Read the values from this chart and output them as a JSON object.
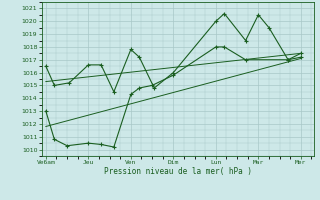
{
  "xlabel": "Pression niveau de la mer( hPa )",
  "ylim": [
    1009.5,
    1021.5
  ],
  "yticks": [
    1010,
    1011,
    1012,
    1013,
    1014,
    1015,
    1016,
    1017,
    1018,
    1019,
    1020,
    1021
  ],
  "xtick_labels": [
    "Ve6am",
    "Jeu",
    "Ven",
    "Dim",
    "Lun",
    "Mar",
    "Mer"
  ],
  "xtick_positions": [
    0,
    1,
    2,
    3,
    4,
    5,
    6
  ],
  "xlim": [
    -0.1,
    6.3
  ],
  "bg_color": "#cde8e8",
  "grid_color": "#a8c8c8",
  "line_color": "#1a5e20",
  "series1_x": [
    0,
    0.2,
    0.55,
    1.0,
    1.3,
    1.6,
    2.0,
    2.2,
    2.55,
    3.0,
    4.0,
    4.2,
    4.7,
    5.0,
    5.25,
    5.7,
    6.0
  ],
  "series1_y": [
    1016.5,
    1015.0,
    1015.2,
    1016.6,
    1016.6,
    1014.5,
    1017.8,
    1017.2,
    1014.8,
    1016.0,
    1020.0,
    1020.6,
    1018.5,
    1020.5,
    1019.5,
    1017.0,
    1017.5
  ],
  "series2_x": [
    0,
    0.2,
    0.5,
    1.0,
    1.3,
    1.6,
    2.0,
    2.2,
    2.5,
    3.0,
    4.0,
    4.2,
    4.7,
    5.7,
    6.0
  ],
  "series2_y": [
    1013.0,
    1010.8,
    1010.3,
    1010.5,
    1010.4,
    1010.2,
    1014.3,
    1014.8,
    1015.0,
    1015.8,
    1018.0,
    1018.0,
    1017.0,
    1017.0,
    1017.2
  ],
  "trend1_x": [
    0,
    6
  ],
  "trend1_y": [
    1015.3,
    1017.5
  ],
  "trend2_x": [
    0,
    6
  ],
  "trend2_y": [
    1011.8,
    1017.1
  ]
}
